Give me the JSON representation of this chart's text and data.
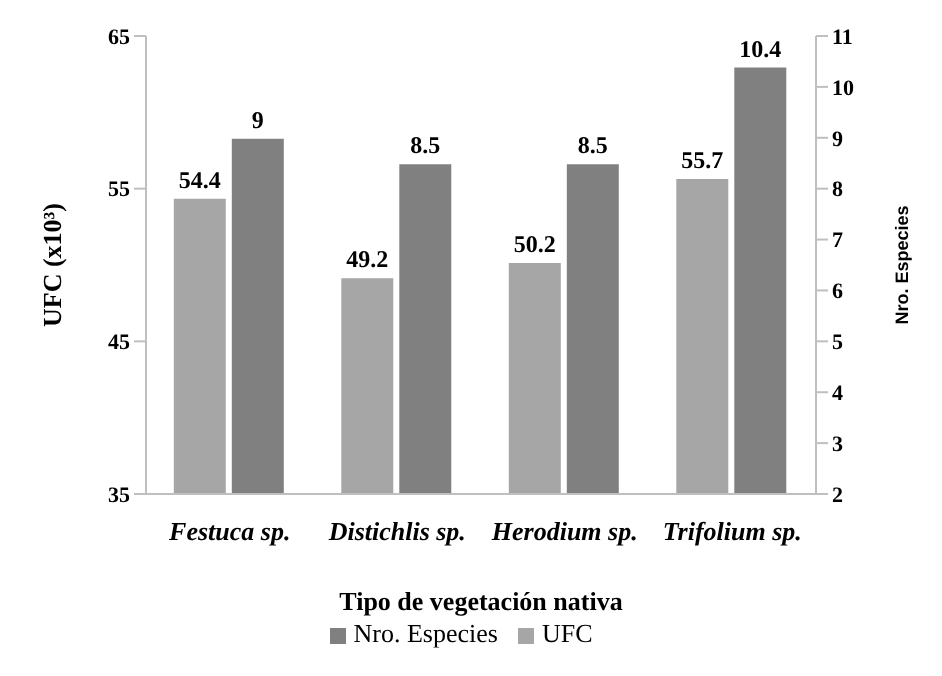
{
  "chart_data": {
    "type": "bar",
    "xlabel": "Tipo de vegetación nativa",
    "ylabel": "UFC (x10³)",
    "y2label": "Nro. Especies",
    "categories": [
      "Festuca sp.",
      "Distichlis sp.",
      "Herodium sp.",
      "Trifolium sp."
    ],
    "series": [
      {
        "name": "UFC",
        "color": "#a6a6a6",
        "values": [
          54.4,
          49.2,
          50.2,
          55.7
        ]
      },
      {
        "name": "Nro. Especies",
        "color": "#808080",
        "values": [
          9,
          8.5,
          8.5,
          10.4
        ],
        "axis": "y2"
      }
    ],
    "ylim": [
      35,
      65
    ],
    "yticks": [
      35,
      45,
      55,
      65
    ],
    "y2lim": [
      2,
      11
    ],
    "y2ticks": [
      2,
      3,
      4,
      5,
      6,
      7,
      8,
      9,
      10,
      11
    ],
    "data_labels": true,
    "legend": "bottom",
    "grid": false
  }
}
